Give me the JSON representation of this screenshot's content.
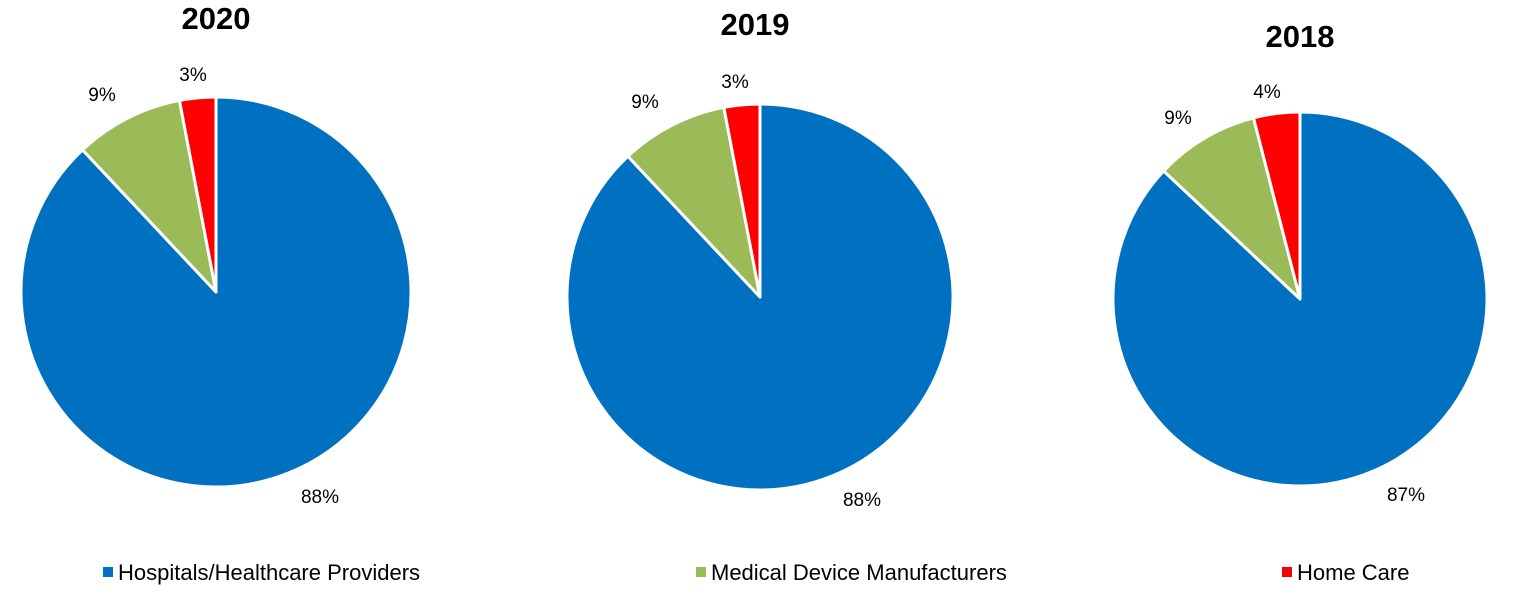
{
  "chart_data": [
    {
      "type": "pie",
      "title": "2020",
      "categories": [
        "Hospitals/Healthcare Providers",
        "Medical Device Manufacturers",
        "Home Care"
      ],
      "values": [
        88,
        9,
        3
      ],
      "labels": [
        "88%",
        "9%",
        "3%"
      ]
    },
    {
      "type": "pie",
      "title": "2019",
      "categories": [
        "Hospitals/Healthcare Providers",
        "Medical Device Manufacturers",
        "Home Care"
      ],
      "values": [
        88,
        9,
        3
      ],
      "labels": [
        "88%",
        "9%",
        "3%"
      ]
    },
    {
      "type": "pie",
      "title": "2018",
      "categories": [
        "Hospitals/Healthcare Providers",
        "Medical Device Manufacturers",
        "Home Care"
      ],
      "values": [
        87,
        9,
        4
      ],
      "labels": [
        "87%",
        "9%",
        "4%"
      ]
    }
  ],
  "legend": {
    "items": [
      {
        "label": "Hospitals/Healthcare Providers",
        "color": "#0070C0"
      },
      {
        "label": "Medical Device Manufacturers",
        "color": "#9BBB59"
      },
      {
        "label": "Home Care",
        "color": "#FF0000"
      }
    ]
  },
  "colors": [
    "#0070C0",
    "#9BBB59",
    "#FF0000"
  ]
}
